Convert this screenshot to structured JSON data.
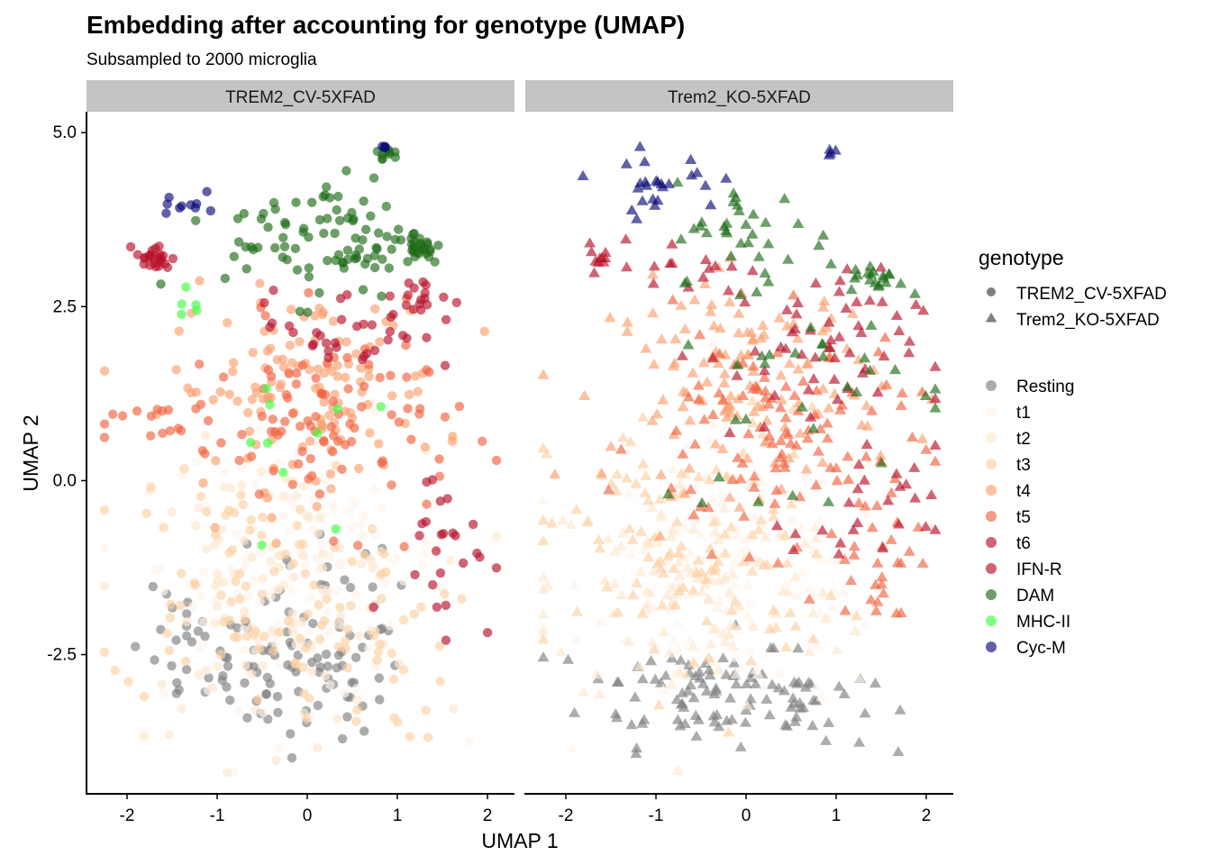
{
  "chart_data": {
    "type": "scatter",
    "title": "Embedding after accounting for genotype (UMAP)",
    "subtitle": "Subsampled to 2000 microglia",
    "xlabel": "UMAP 1",
    "ylabel": "UMAP 2",
    "xlim": [
      -2.45,
      2.3
    ],
    "ylim": [
      -4.5,
      5.3
    ],
    "xticks": [
      -2,
      -1,
      0,
      1,
      2
    ],
    "xtick_labels": [
      "-2",
      "-1",
      "0",
      "1",
      "2"
    ],
    "yticks": [
      -2.5,
      0,
      2.5,
      5
    ],
    "ytick_labels": [
      "-2.5",
      "0.0",
      "2.5",
      "5.0"
    ],
    "grid": false,
    "legend_position": "right",
    "facets": [
      "TREM2_CV-5XFAD",
      "Trem2_KO-5XFAD"
    ],
    "shape_legend": {
      "title": "genotype",
      "entries": [
        {
          "label": "TREM2_CV-5XFAD",
          "shape": "circle"
        },
        {
          "label": "Trem2_KO-5XFAD",
          "shape": "triangle"
        }
      ]
    },
    "color_legend": {
      "entries": [
        {
          "label": "Resting",
          "color": "#7f7f7f"
        },
        {
          "label": "t1",
          "color": "#fff5eb"
        },
        {
          "label": "t2",
          "color": "#fee6ce"
        },
        {
          "label": "t3",
          "color": "#fdd0a2"
        },
        {
          "label": "t4",
          "color": "#fc9e6f"
        },
        {
          "label": "t5",
          "color": "#f16340"
        },
        {
          "label": "t6",
          "color": "#b8112a"
        },
        {
          "label": "IFN-R",
          "color": "#b8112a"
        },
        {
          "label": "DAM",
          "color": "#1f6b18"
        },
        {
          "label": "MHC-II",
          "color": "#3fff3f"
        },
        {
          "label": "Cyc-M",
          "color": "#0d0d7a"
        }
      ]
    },
    "point_opacity": 0.65,
    "approx_points_per_facet": 1000,
    "series": [
      {
        "name": "Resting",
        "clusters": [
          {
            "cx": 0.0,
            "cy": -2.8,
            "sx": 0.55,
            "sy": 0.45,
            "n": 75,
            "facet": 0
          },
          {
            "cx": -1.3,
            "cy": -2.5,
            "sx": 0.35,
            "sy": 0.45,
            "n": 25,
            "facet": 0
          },
          {
            "cx": 0.1,
            "cy": -1.4,
            "sx": 0.5,
            "sy": 0.45,
            "n": 20,
            "facet": 0
          },
          {
            "cx": -0.6,
            "cy": -3.0,
            "sx": 0.6,
            "sy": 0.4,
            "n": 75,
            "facet": 1
          },
          {
            "cx": 0.6,
            "cy": -3.2,
            "sx": 0.4,
            "sy": 0.35,
            "n": 35,
            "facet": 1
          }
        ]
      },
      {
        "name": "t1",
        "clusters": [
          {
            "cx": 0.0,
            "cy": -1.2,
            "sx": 0.8,
            "sy": 1.0,
            "n": 130,
            "facet": 0
          },
          {
            "cx": 0.0,
            "cy": -1.3,
            "sx": 0.85,
            "sy": 1.0,
            "n": 130,
            "facet": 1
          }
        ]
      },
      {
        "name": "t2",
        "clusters": [
          {
            "cx": -0.4,
            "cy": -1.6,
            "sx": 0.85,
            "sy": 1.0,
            "n": 100,
            "facet": 0
          },
          {
            "cx": -0.6,
            "cy": -1.6,
            "sx": 0.85,
            "sy": 0.9,
            "n": 110,
            "facet": 1
          }
        ]
      },
      {
        "name": "t3",
        "clusters": [
          {
            "cx": -0.8,
            "cy": -1.4,
            "sx": 0.7,
            "sy": 0.9,
            "n": 75,
            "facet": 0
          },
          {
            "cx": 0.6,
            "cy": -2.4,
            "sx": 0.5,
            "sy": 0.7,
            "n": 40,
            "facet": 0
          },
          {
            "cx": -0.6,
            "cy": -1.0,
            "sx": 0.8,
            "sy": 1.0,
            "n": 110,
            "facet": 1
          }
        ]
      },
      {
        "name": "t4",
        "clusters": [
          {
            "cx": 0.0,
            "cy": 1.3,
            "sx": 0.75,
            "sy": 0.7,
            "n": 130,
            "facet": 0
          },
          {
            "cx": 0.0,
            "cy": 1.4,
            "sx": 0.75,
            "sy": 0.75,
            "n": 130,
            "facet": 1
          }
        ]
      },
      {
        "name": "t5",
        "clusters": [
          {
            "cx": 0.3,
            "cy": 0.8,
            "sx": 0.7,
            "sy": 0.7,
            "n": 90,
            "facet": 0
          },
          {
            "cx": -1.5,
            "cy": 0.8,
            "sx": 0.35,
            "sy": 0.3,
            "n": 20,
            "facet": 0
          },
          {
            "cx": 0.3,
            "cy": 0.6,
            "sx": 0.75,
            "sy": 0.8,
            "n": 100,
            "facet": 1
          },
          {
            "cx": 1.5,
            "cy": -1.0,
            "sx": 0.3,
            "sy": 0.6,
            "n": 30,
            "facet": 1
          }
        ]
      },
      {
        "name": "t6",
        "clusters": [
          {
            "cx": 0.5,
            "cy": 2.2,
            "sx": 0.55,
            "sy": 0.3,
            "n": 35,
            "facet": 0
          },
          {
            "cx": 1.5,
            "cy": -0.9,
            "sx": 0.3,
            "sy": 0.6,
            "n": 25,
            "facet": 0
          },
          {
            "cx": 0.7,
            "cy": 1.8,
            "sx": 0.6,
            "sy": 0.6,
            "n": 55,
            "facet": 1
          },
          {
            "cx": 1.3,
            "cy": -0.5,
            "sx": 0.4,
            "sy": 0.5,
            "n": 25,
            "facet": 1
          }
        ]
      },
      {
        "name": "IFN-R",
        "clusters": [
          {
            "cx": -1.7,
            "cy": 3.2,
            "sx": 0.1,
            "sy": 0.1,
            "n": 25,
            "facet": 0
          },
          {
            "cx": 1.2,
            "cy": 2.6,
            "sx": 0.15,
            "sy": 0.15,
            "n": 15,
            "facet": 0
          },
          {
            "cx": -1.6,
            "cy": 3.2,
            "sx": 0.15,
            "sy": 0.1,
            "n": 10,
            "facet": 1
          },
          {
            "cx": -0.6,
            "cy": 3.1,
            "sx": 0.3,
            "sy": 0.2,
            "n": 15,
            "facet": 1
          }
        ]
      },
      {
        "name": "DAM",
        "clusters": [
          {
            "cx": 0.2,
            "cy": 3.5,
            "sx": 0.55,
            "sy": 0.45,
            "n": 90,
            "facet": 0
          },
          {
            "cx": 1.25,
            "cy": 3.35,
            "sx": 0.12,
            "sy": 0.12,
            "n": 25,
            "facet": 0
          },
          {
            "cx": 0.9,
            "cy": 4.7,
            "sx": 0.06,
            "sy": 0.06,
            "n": 10,
            "facet": 0
          },
          {
            "cx": 0.0,
            "cy": 3.6,
            "sx": 0.4,
            "sy": 0.35,
            "n": 30,
            "facet": 1
          },
          {
            "cx": 1.45,
            "cy": 2.9,
            "sx": 0.15,
            "sy": 0.1,
            "n": 20,
            "facet": 1
          },
          {
            "cx": 0.7,
            "cy": 1.5,
            "sx": 0.9,
            "sy": 1.1,
            "n": 35,
            "facet": 1
          }
        ]
      },
      {
        "name": "MHC-II",
        "clusters": [
          {
            "cx": -1.3,
            "cy": 2.6,
            "sx": 0.1,
            "sy": 0.2,
            "n": 5,
            "facet": 0
          },
          {
            "cx": 0.0,
            "cy": 0.8,
            "sx": 0.5,
            "sy": 0.8,
            "n": 10,
            "facet": 0
          }
        ]
      },
      {
        "name": "Cyc-M",
        "clusters": [
          {
            "cx": -1.4,
            "cy": 4.0,
            "sx": 0.12,
            "sy": 0.15,
            "n": 10,
            "facet": 0
          },
          {
            "cx": 0.87,
            "cy": 4.8,
            "sx": 0.03,
            "sy": 0.02,
            "n": 4,
            "facet": 0
          },
          {
            "cx": -1.0,
            "cy": 4.3,
            "sx": 0.35,
            "sy": 0.2,
            "n": 25,
            "facet": 1
          },
          {
            "cx": 0.97,
            "cy": 4.7,
            "sx": 0.04,
            "sy": 0.03,
            "n": 4,
            "facet": 1
          }
        ]
      }
    ]
  }
}
